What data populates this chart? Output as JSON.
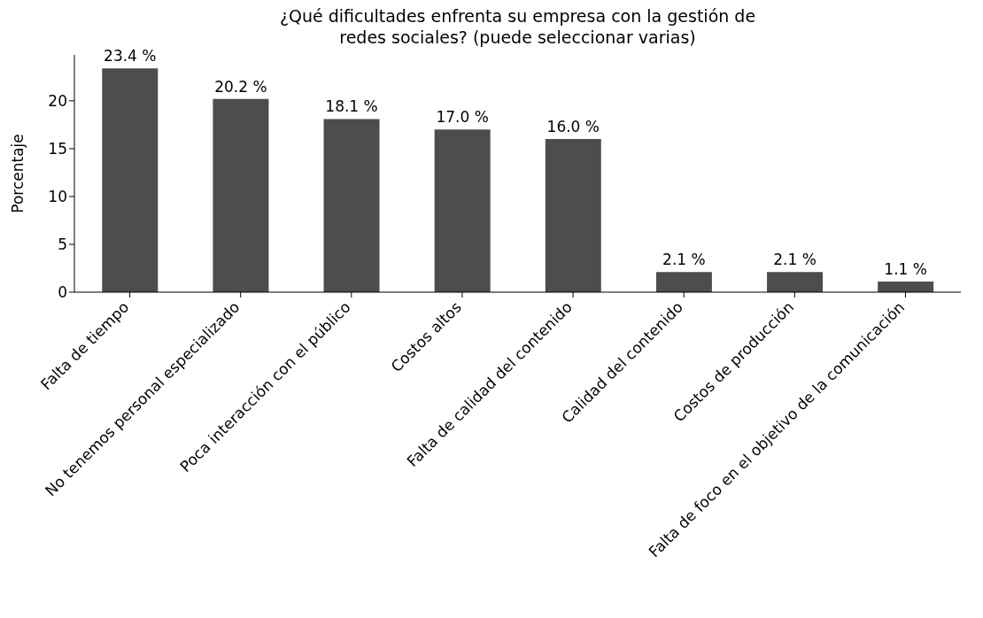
{
  "chart_data": {
    "type": "bar",
    "title": "¿Qué dificultades enfrenta su empresa con la gestión de\nredes sociales? (puede seleccionar varias)",
    "ylabel": "Porcentaje",
    "categories": [
      "Falta de tiempo",
      "No tenemos personal especializado",
      "Poca interacción con el público",
      "Costos altos",
      "Falta de calidad del contenido",
      "Calidad del contenido",
      "Costos de producción",
      "Falta de foco en el objetivo de la comunicación"
    ],
    "values": [
      23.4,
      20.2,
      18.1,
      17.0,
      16.0,
      2.1,
      2.1,
      1.1
    ],
    "value_labels": [
      "23.4 %",
      "20.2 %",
      "18.1 %",
      "17.0 %",
      "16.0 %",
      "2.1 %",
      "2.1 %",
      "1.1 %"
    ],
    "color": "#4d4d4d",
    "ylim": [
      0,
      24.8
    ],
    "yticks": [
      0,
      5,
      10,
      15,
      20
    ],
    "grid": false
  }
}
